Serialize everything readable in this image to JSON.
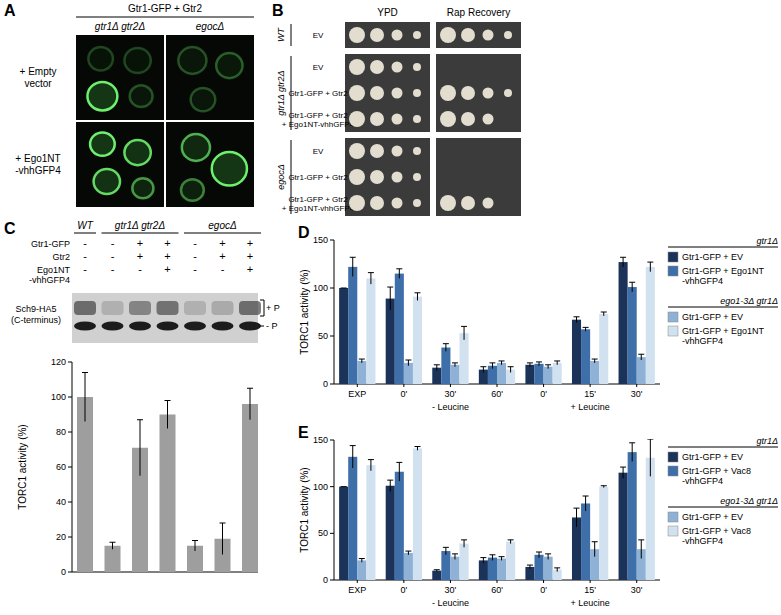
{
  "panels": {
    "A": {
      "label": "A",
      "header": "Gtr1-GFP + Gtr2",
      "columns": [
        "gtr1Δ gtr2Δ",
        "egocΔ"
      ],
      "rows": [
        "+ Empty vector",
        "+ Ego1NT -vhhGFP4"
      ]
    },
    "B": {
      "label": "B",
      "columns": [
        "YPD",
        "Rap Recovery"
      ],
      "groups": [
        {
          "name": "WT",
          "rows": [
            {
              "label": "EV",
              "ypd_spots": 4,
              "rap_spots": 4
            }
          ]
        },
        {
          "name": "gtr1Δ gtr2Δ",
          "rows": [
            {
              "label": "EV",
              "ypd_spots": 4,
              "rap_spots": 0
            },
            {
              "label": "Gtr1-GFP + Gtr2",
              "ypd_spots": 4,
              "rap_spots": 4
            },
            {
              "label": "Gtr1-GFP + Gtr2 + Ego1NT-vhhGFP4",
              "ypd_spots": 4,
              "rap_spots": 3
            }
          ]
        },
        {
          "name": "egocΔ",
          "rows": [
            {
              "label": "EV",
              "ypd_spots": 4,
              "rap_spots": 0
            },
            {
              "label": "Gtr1-GFP + Gtr2",
              "ypd_spots": 4,
              "rap_spots": 0
            },
            {
              "label": "Gtr1-GFP + Gtr2 + Ego1NT-vhhGFP4",
              "ypd_spots": 4,
              "rap_spots": 3
            }
          ]
        }
      ]
    },
    "C": {
      "label": "C",
      "lane_strains": [
        "WT",
        "gtr1Δ gtr2Δ",
        "gtr1Δ gtr2Δ",
        "gtr1Δ gtr2Δ",
        "egocΔ",
        "egocΔ",
        "egocΔ"
      ],
      "table": [
        {
          "name": "Gtr1-GFP",
          "values": [
            "-",
            "-",
            "+",
            "+",
            "-",
            "+",
            "+"
          ]
        },
        {
          "name": "Gtr2",
          "values": [
            "-",
            "-",
            "+",
            "+",
            "-",
            "+",
            "+"
          ]
        },
        {
          "name": "Ego1NT -vhhGFP4",
          "values": [
            "-",
            "-",
            "-",
            "+",
            "-",
            "-",
            "+"
          ]
        }
      ],
      "blot_label": "Sch9-HA5 (C-terminus)",
      "band_labels": [
        "+ P",
        "- P"
      ]
    }
  },
  "chart_data": [
    {
      "type": "bar",
      "categories": [
        null,
        null,
        null,
        null,
        null,
        null,
        null
      ],
      "values": [
        100,
        15,
        71,
        90,
        15,
        19,
        96
      ],
      "errors": [
        14,
        2,
        16,
        8,
        3,
        9,
        9
      ],
      "color": "#9e9e9e",
      "y_label": "TORC1 activity (%)",
      "ylim": [
        0,
        120
      ],
      "yticks": [
        0,
        20,
        40,
        60,
        80,
        100,
        120
      ]
    },
    {
      "type": "bar",
      "title": "D",
      "categories": [
        "EXP",
        "0'",
        "30'",
        "60'",
        "0'",
        "15'",
        "30'"
      ],
      "x_groups": [
        null,
        "- Leucine",
        "- Leucine",
        "- Leucine",
        "+ Leucine",
        "+ Leucine",
        "+ Leucine"
      ],
      "y_label": "TORC1 activity (%)",
      "ylim": [
        0,
        150
      ],
      "yticks": [
        0,
        50,
        100,
        150
      ],
      "legend": "right",
      "legend_titles": [
        "gtr1Δ",
        "ego1-3Δ gtr1Δ"
      ],
      "series": [
        {
          "name": "Gtr1-GFP + EV",
          "color": "#1b3358",
          "values": [
            100,
            89,
            17,
            15,
            20,
            67,
            127
          ],
          "errors": [
            0,
            12,
            3,
            3,
            2,
            3,
            5
          ]
        },
        {
          "name": "Gtr1-GFP + Ego1NT -vhhGFP4",
          "color": "#3e6fa8",
          "values": [
            122,
            115,
            38,
            19,
            21,
            57,
            101
          ],
          "errors": [
            10,
            5,
            4,
            3,
            2,
            2,
            5
          ]
        },
        {
          "name": "Gtr1-GFP + EV",
          "color": "#8fb1d6",
          "values": [
            24,
            22,
            20,
            22,
            18,
            24,
            28
          ],
          "errors": [
            2,
            3,
            2,
            2,
            2,
            2,
            3
          ]
        },
        {
          "name": "Gtr1-GFP + Ego1NT -vhhGFP4",
          "color": "#d2e1f0",
          "values": [
            110,
            91,
            53,
            15,
            22,
            73,
            122
          ],
          "errors": [
            6,
            4,
            7,
            3,
            2,
            2,
            5
          ]
        }
      ]
    },
    {
      "type": "bar",
      "title": "E",
      "categories": [
        "EXP",
        "0'",
        "30'",
        "60'",
        "0'",
        "15'",
        "30'"
      ],
      "x_groups": [
        null,
        "- Leucine",
        "- Leucine",
        "- Leucine",
        "+ Leucine",
        "+ Leucine",
        "+ Leucine"
      ],
      "y_label": "TORC1 activity (%)",
      "ylim": [
        0,
        150
      ],
      "yticks": [
        0,
        50,
        100,
        150
      ],
      "legend": "right",
      "legend_titles": [
        "gtr1Δ",
        "ego1-3Δ gtr1Δ"
      ],
      "series": [
        {
          "name": "Gtr1-GFP + EV",
          "color": "#1b3358",
          "values": [
            100,
            101,
            10,
            21,
            14,
            67,
            115
          ],
          "errors": [
            0,
            6,
            1,
            3,
            2,
            10,
            6
          ]
        },
        {
          "name": "Gtr1-GFP + Vac8 -vhhGFP4",
          "color": "#3e6fa8",
          "values": [
            132,
            116,
            31,
            24,
            27,
            82,
            137
          ],
          "errors": [
            12,
            10,
            4,
            3,
            3,
            8,
            10
          ]
        },
        {
          "name": "Gtr1-GFP + EV",
          "color": "#8fb1d6",
          "values": [
            21,
            29,
            25,
            23,
            25,
            33,
            33
          ],
          "errors": [
            2,
            2,
            3,
            2,
            3,
            8,
            10
          ]
        },
        {
          "name": "Gtr1-GFP + Vac8 -vhhGFP4",
          "color": "#d2e1f0",
          "values": [
            123,
            141,
            39,
            41,
            11,
            100,
            131
          ],
          "errors": [
            6,
            2,
            4,
            2,
            2,
            1,
            20
          ]
        }
      ]
    }
  ]
}
